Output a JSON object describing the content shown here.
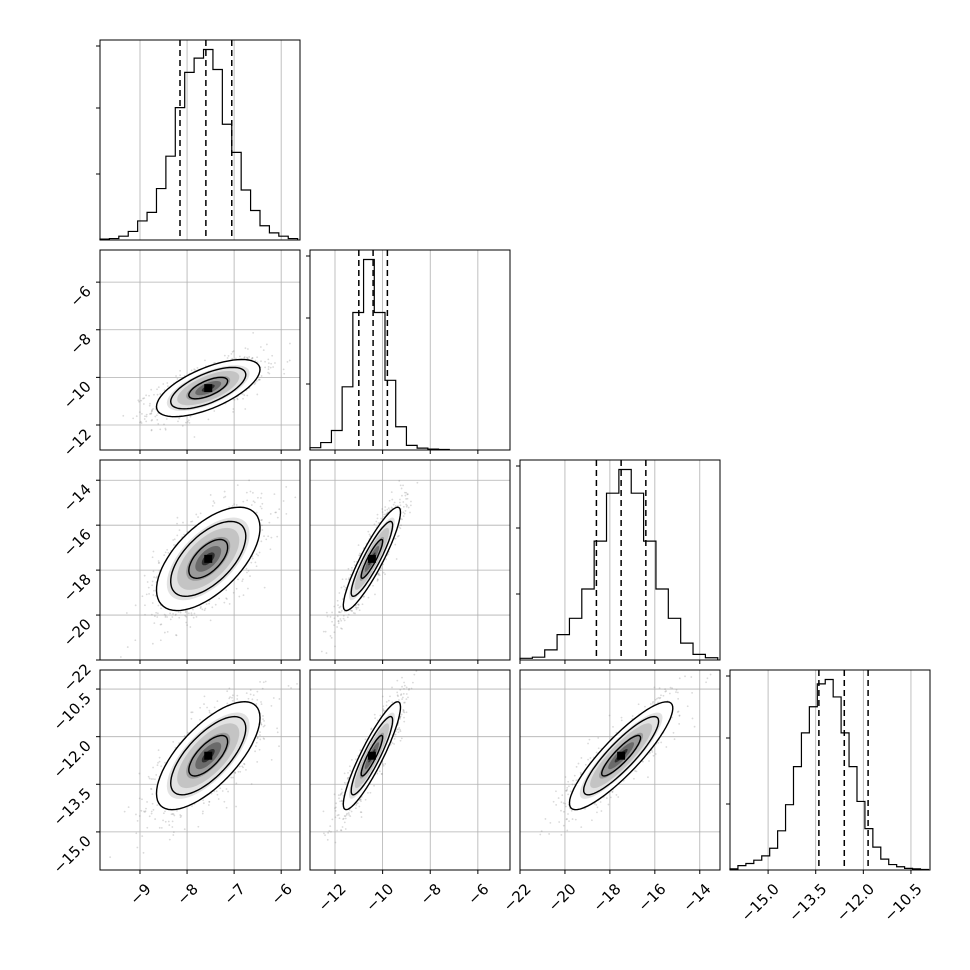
{
  "chart_data": {
    "type": "corner",
    "params": [
      {
        "ticks": [
          -9,
          -8,
          -7,
          -6
        ],
        "tick_labels": [
          "−9",
          "−8",
          "−7",
          "−6"
        ],
        "range": [
          -9.85,
          -5.6
        ]
      },
      {
        "ticks": [
          -12,
          -10,
          -8,
          -6
        ],
        "tick_labels": [
          "−12",
          "−10",
          "−8",
          "−6"
        ],
        "range": [
          -13.05,
          -4.65
        ]
      },
      {
        "ticks": [
          -22,
          -20,
          -18,
          -16,
          -14
        ],
        "tick_labels": [
          "−22",
          "−20",
          "−18",
          "−16",
          "−14"
        ],
        "range": [
          -22.0,
          -13.1
        ]
      },
      {
        "ticks": [
          -15.0,
          -13.5,
          -12.0,
          -10.5
        ],
        "tick_labels": [
          "−15.0",
          "−13.5",
          "−12.0",
          "−10.5"
        ],
        "range": [
          -16.2,
          -9.9
        ]
      }
    ],
    "marginals": [
      {
        "quantiles": [
          -8.15,
          -7.6,
          -7.05
        ],
        "edges": [
          -9.85,
          -9.65,
          -9.45,
          -9.25,
          -9.05,
          -8.85,
          -8.65,
          -8.45,
          -8.25,
          -8.05,
          -7.85,
          -7.65,
          -7.45,
          -7.25,
          -7.05,
          -6.85,
          -6.65,
          -6.45,
          -6.25,
          -6.05,
          -5.85,
          -5.65
        ],
        "counts": [
          2,
          3,
          8,
          18,
          40,
          58,
          108,
          176,
          278,
          352,
          382,
          400,
          358,
          243,
          184,
          105,
          62,
          30,
          15,
          8,
          3
        ]
      },
      {
        "quantiles": [
          -11.0,
          -10.4,
          -9.8
        ],
        "edges": [
          -13.05,
          -12.6,
          -12.15,
          -11.7,
          -11.25,
          -10.8,
          -10.35,
          -9.9,
          -9.45,
          -9.0,
          -8.55,
          -8.1,
          -7.65,
          -7.2
        ],
        "counts": [
          5,
          16,
          42,
          136,
          296,
          410,
          296,
          150,
          50,
          10,
          4,
          2,
          1
        ]
      },
      {
        "quantiles": [
          -18.6,
          -17.5,
          -16.4
        ],
        "edges": [
          -22.0,
          -21.45,
          -20.9,
          -20.35,
          -19.8,
          -19.25,
          -18.7,
          -18.15,
          -17.6,
          -17.05,
          -16.5,
          -15.95,
          -15.4,
          -14.85,
          -14.3,
          -13.75,
          -13.2
        ],
        "counts": [
          3,
          5,
          18,
          45,
          74,
          126,
          211,
          296,
          338,
          296,
          211,
          126,
          74,
          30,
          10,
          4
        ]
      },
      {
        "quantiles": [
          -13.4,
          -12.6,
          -11.85
        ],
        "edges": [
          -16.2,
          -15.95,
          -15.7,
          -15.45,
          -15.2,
          -14.95,
          -14.7,
          -14.45,
          -14.2,
          -13.95,
          -13.7,
          -13.45,
          -13.2,
          -12.95,
          -12.7,
          -12.45,
          -12.2,
          -11.95,
          -11.7,
          -11.45,
          -11.2,
          -10.95,
          -10.7,
          -10.45,
          -10.2,
          -9.95
        ],
        "counts": [
          2,
          8,
          12,
          18,
          26,
          40,
          72,
          120,
          190,
          252,
          300,
          342,
          350,
          318,
          252,
          190,
          126,
          76,
          42,
          20,
          10,
          6,
          3,
          2,
          1
        ]
      }
    ],
    "joint": {
      "means": [
        -7.55,
        -10.45,
        -17.5,
        -12.6
      ],
      "sigmas": [
        0.55,
        0.6,
        1.15,
        0.85
      ],
      "correlations": {
        "1-0": 0.65,
        "2-0": 0.6,
        "2-1": 0.9,
        "3-0": 0.7,
        "3-1": 0.9,
        "3-2": 0.88
      }
    },
    "grid": true,
    "legend": "none"
  }
}
